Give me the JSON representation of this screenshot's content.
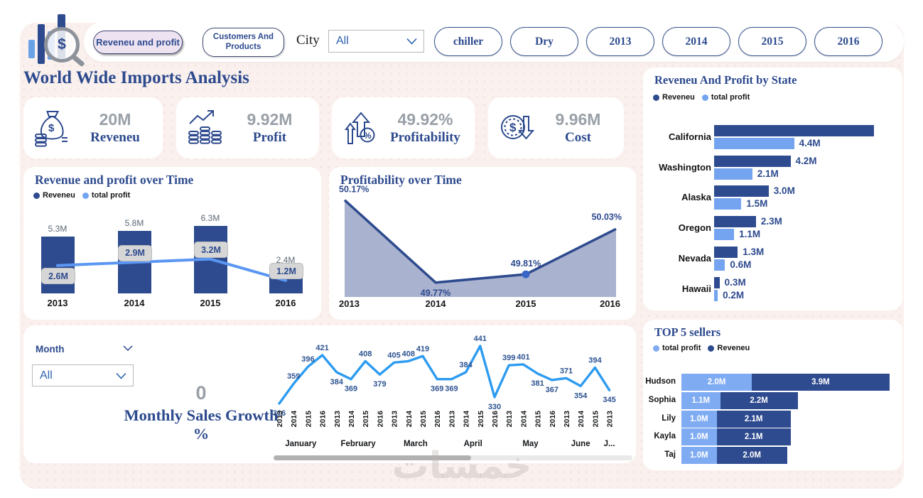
{
  "colors": {
    "navy_accent": "#2d4a8e",
    "bar_dark": "#2e4b8f",
    "bar_light": "#74a4f0",
    "top5_light": "#7fabf2",
    "profit_line": "#5b97f2",
    "monthly_line": "#2d9bf0",
    "area_fill": "#a9b2ce",
    "area_line": "#2d4a8e",
    "kpi_value_gray": "#9aa0a8",
    "canvas_bg": "#faf1ee",
    "card_bg": "#ffffff",
    "active_button_bg": "#eee3f1",
    "select_text_blue": "#2b62b0",
    "chip_bg": "#d6d6d6",
    "scroll_thumb": "#b1b1b1"
  },
  "topbar": {
    "nav_buttons": [
      {
        "label": "Reveneu and profit",
        "active": true
      },
      {
        "label": "Customers And Products",
        "active": false
      }
    ],
    "city_label": "City",
    "city_value": "All",
    "filter_buttons": [
      "chiller",
      "Dry",
      "2013",
      "2014",
      "2015",
      "2016"
    ]
  },
  "page_title": "World Wide Imports Analysis",
  "kpis": [
    {
      "icon": "money-bag-icon",
      "value": "20M",
      "label": "Reveneu"
    },
    {
      "icon": "coins-growth-icon",
      "value": "9.92M",
      "label": "Profit"
    },
    {
      "icon": "growth-arrows-percent-icon",
      "value": "49.92%",
      "label": "Profitability"
    },
    {
      "icon": "dollar-down-arrow-icon",
      "value": "9.96M",
      "label": "Cost"
    }
  ],
  "monthly_panel": {
    "month_label": "Month",
    "month_value": "All",
    "growth_value": "0",
    "growth_label": "Monthly Sales Growth %"
  },
  "watermark": "خمسات",
  "chart_data": [
    {
      "name": "revenue_and_profit_over_time",
      "type": "bar",
      "title": "Revenue and profit over Time",
      "legend": [
        "Reveneu",
        "total profit"
      ],
      "legend_position": "top-left",
      "categories": [
        "2013",
        "2014",
        "2015",
        "2016"
      ],
      "series": [
        {
          "name": "Reveneu",
          "type": "bar",
          "values": [
            5.3,
            5.8,
            6.3,
            2.4
          ],
          "labels": [
            "5.3M",
            "5.8M",
            "6.3M",
            "2.4M"
          ]
        },
        {
          "name": "total profit",
          "type": "line",
          "values": [
            2.6,
            2.9,
            3.2,
            1.2
          ],
          "labels": [
            "2.6M",
            "2.9M",
            "3.2M",
            "1.2M"
          ]
        }
      ],
      "ylim": [
        0,
        7
      ],
      "unit": "M",
      "grid": false
    },
    {
      "name": "profitability_over_time",
      "type": "area",
      "title": "Profitability over Time",
      "x": [
        "2013",
        "2014",
        "2015",
        "2016"
      ],
      "values": [
        50.17,
        49.77,
        49.81,
        50.03
      ],
      "labels": [
        "50.17%",
        "49.77%",
        "49.81%",
        "50.03%"
      ],
      "marker_index": 2,
      "ylim": [
        49.7,
        50.2
      ],
      "grid": false
    },
    {
      "name": "reveneu_and_profit_by_state",
      "type": "bar",
      "orientation": "horizontal",
      "title": "Reveneu And Profit by State",
      "legend": [
        "Reveneu",
        "total profit"
      ],
      "categories": [
        "California",
        "Washington",
        "Alaska",
        "Oregon",
        "Nevada",
        "Hawaii"
      ],
      "series": [
        {
          "name": "Reveneu",
          "values": [
            8.8,
            4.2,
            3.0,
            2.3,
            1.3,
            0.3
          ],
          "labels": [
            "",
            "4.2M",
            "3.0M",
            "2.3M",
            "1.3M",
            "0.3M"
          ]
        },
        {
          "name": "total profit",
          "values": [
            4.4,
            2.1,
            1.5,
            1.1,
            0.6,
            0.2
          ],
          "labels": [
            "4.4M",
            "2.1M",
            "1.5M",
            "1.1M",
            "0.6M",
            "0.2M"
          ]
        }
      ],
      "xlim": [
        0,
        8.8
      ],
      "unit": "M"
    },
    {
      "name": "monthly_sales",
      "type": "line",
      "title": "",
      "values": [
        316,
        359,
        396,
        421,
        384,
        369,
        408,
        379,
        405,
        408,
        419,
        369,
        369,
        384,
        441,
        330,
        399,
        401,
        381,
        367,
        371,
        354,
        394,
        345
      ],
      "ticks": [
        "2013",
        "2014",
        "2015",
        "2016",
        "2013",
        "2014",
        "2015",
        "2016",
        "2013",
        "2014",
        "2015",
        "2016",
        "2013",
        "2014",
        "2015",
        "2016",
        "2013",
        "2014",
        "2015",
        "2016",
        "2013",
        "2014",
        "2015",
        "2013"
      ],
      "month_groups": [
        {
          "label": "January",
          "count": 4
        },
        {
          "label": "February",
          "count": 4
        },
        {
          "label": "March",
          "count": 4
        },
        {
          "label": "April",
          "count": 4
        },
        {
          "label": "May",
          "count": 4
        },
        {
          "label": "June",
          "count": 3
        },
        {
          "label": "J...",
          "count": 1
        }
      ],
      "ylim": [
        300,
        460
      ],
      "scrollable": true
    },
    {
      "name": "top_5_sellers",
      "type": "bar",
      "orientation": "horizontal",
      "stacked": true,
      "title": "TOP 5 sellers",
      "legend": [
        "total profit",
        "Reveneu"
      ],
      "categories": [
        "Hudson",
        "Sophia",
        "Lily",
        "Kayla",
        "Taj"
      ],
      "series": [
        {
          "name": "total profit",
          "values": [
            2.0,
            1.1,
            1.0,
            1.0,
            1.0
          ],
          "labels": [
            "2.0M",
            "1.1M",
            "1.0M",
            "1.0M",
            "1.0M"
          ]
        },
        {
          "name": "Reveneu",
          "values": [
            3.9,
            2.2,
            2.1,
            2.1,
            2.0
          ],
          "labels": [
            "3.9M",
            "2.2M",
            "2.1M",
            "2.1M",
            "2.0M"
          ]
        }
      ],
      "unit": "M"
    }
  ]
}
